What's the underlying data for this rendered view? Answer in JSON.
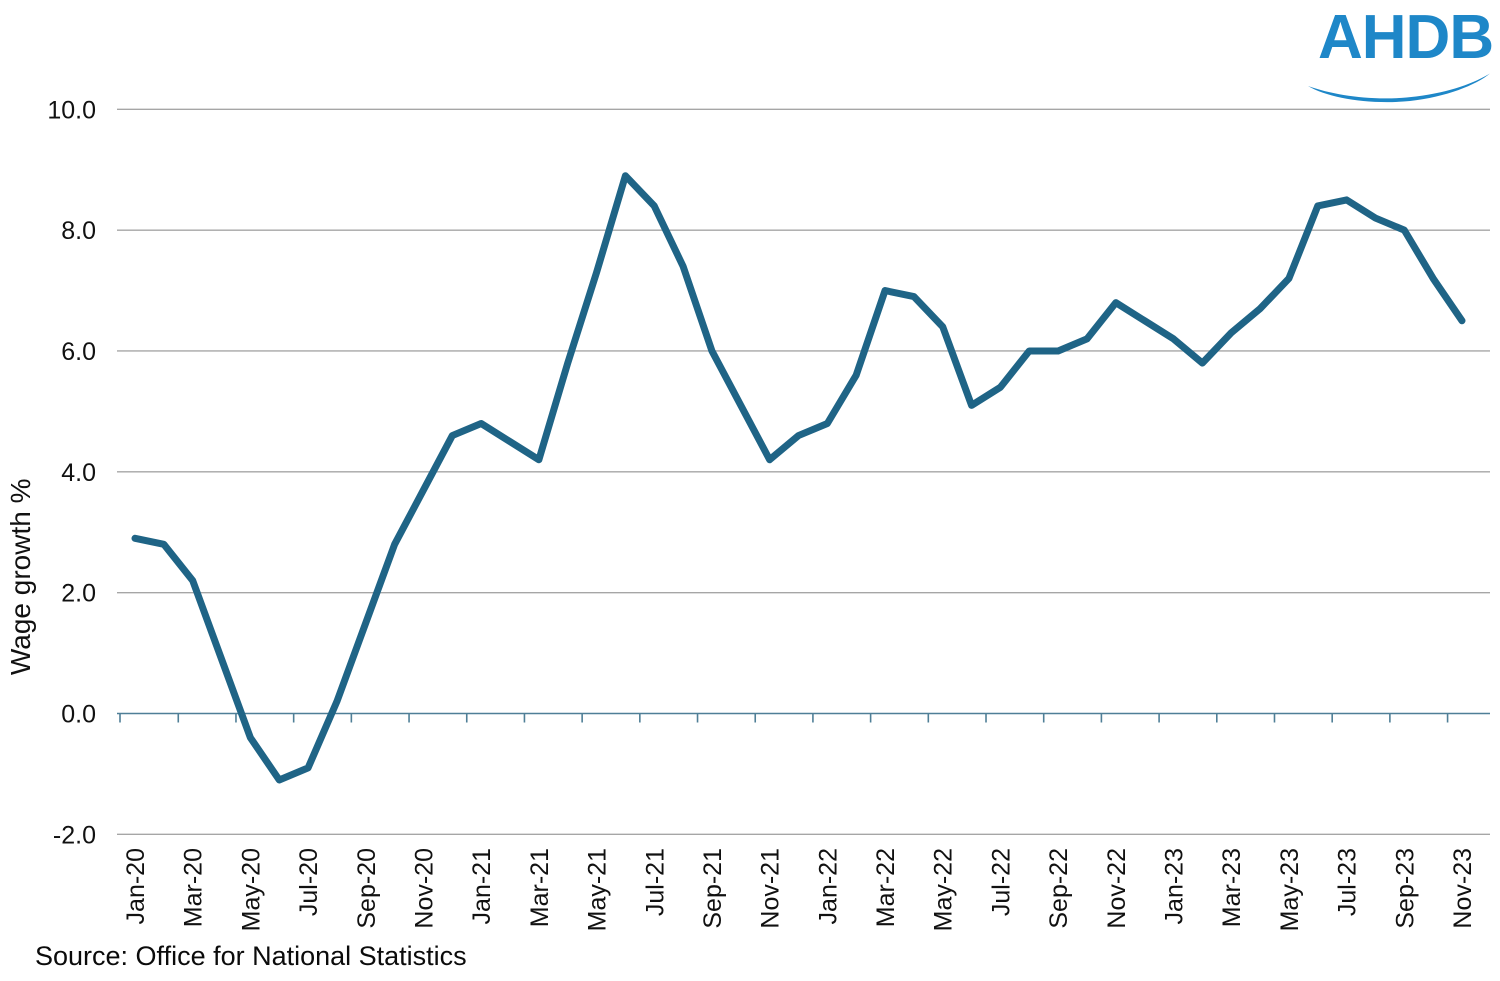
{
  "logo": {
    "text": "AHDB",
    "color": "#1e87c8",
    "wave_icon": "ahdb-wave"
  },
  "source_label": "Source: Office for National Statistics",
  "colors": {
    "line": "#1f6486",
    "gridline": "#a6a6a6",
    "axis": "#4f7f97",
    "label_text": "#111111"
  },
  "chart_data": {
    "type": "line",
    "title": "",
    "xlabel": "",
    "ylabel": "Wage growth %",
    "legend": "none",
    "grid": true,
    "ylim": [
      -2.0,
      10.0
    ],
    "yticks": [
      10.0,
      8.0,
      6.0,
      4.0,
      2.0,
      0.0,
      -2.0
    ],
    "ytick_labels": [
      "10.0",
      "8.0",
      "6.0",
      "4.0",
      "2.0",
      "0.0",
      "-2.0"
    ],
    "x_axis_labeled_every": 2,
    "categories": [
      "Jan-20",
      "Feb-20",
      "Mar-20",
      "Apr-20",
      "May-20",
      "Jun-20",
      "Jul-20",
      "Aug-20",
      "Sep-20",
      "Oct-20",
      "Nov-20",
      "Dec-20",
      "Jan-21",
      "Feb-21",
      "Mar-21",
      "Apr-21",
      "May-21",
      "Jun-21",
      "Jul-21",
      "Aug-21",
      "Sep-21",
      "Oct-21",
      "Nov-21",
      "Dec-21",
      "Jan-22",
      "Feb-22",
      "Mar-22",
      "Apr-22",
      "May-22",
      "Jun-22",
      "Jul-22",
      "Aug-22",
      "Sep-22",
      "Oct-22",
      "Nov-22",
      "Dec-22",
      "Jan-23",
      "Feb-23",
      "Mar-23",
      "Apr-23",
      "May-23",
      "Jun-23",
      "Jul-23",
      "Aug-23",
      "Sep-23",
      "Oct-23",
      "Nov-23"
    ],
    "series": [
      {
        "name": "Wage growth %",
        "values": [
          2.9,
          2.8,
          2.2,
          0.9,
          -0.4,
          -1.1,
          -0.9,
          0.2,
          1.5,
          2.8,
          3.7,
          4.6,
          4.8,
          4.5,
          4.2,
          5.8,
          7.3,
          8.9,
          8.4,
          7.4,
          6.0,
          5.1,
          4.2,
          4.6,
          4.8,
          5.6,
          7.0,
          6.9,
          6.4,
          5.1,
          5.4,
          6.0,
          6.0,
          6.2,
          6.8,
          6.5,
          6.2,
          5.8,
          6.3,
          6.7,
          7.2,
          8.4,
          8.5,
          8.2,
          8.0,
          7.2,
          6.5
        ]
      }
    ]
  }
}
